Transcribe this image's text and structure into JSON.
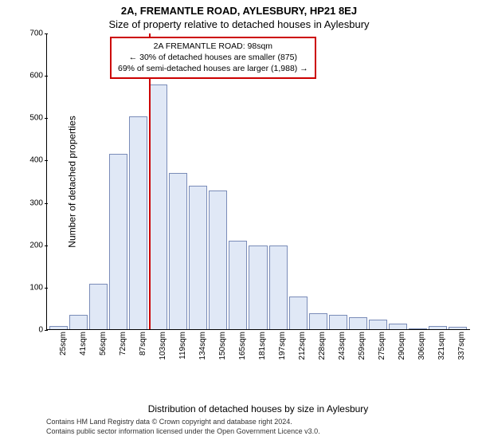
{
  "title": {
    "main": "2A, FREMANTLE ROAD, AYLESBURY, HP21 8EJ",
    "sub": "Size of property relative to detached houses in Aylesbury"
  },
  "chart": {
    "type": "histogram",
    "ylabel": "Number of detached properties",
    "xlabel": "Distribution of detached houses by size in Aylesbury",
    "ylim_max": 700,
    "ytick_step": 100,
    "yticks": [
      0,
      100,
      200,
      300,
      400,
      500,
      600,
      700
    ],
    "bar_fill": "#e0e8f6",
    "bar_border": "#7a8cb8",
    "background_color": "#ffffff",
    "marker_color": "#cc0000",
    "marker_position_bin_index": 5,
    "categories": [
      "25sqm",
      "41sqm",
      "56sqm",
      "72sqm",
      "87sqm",
      "103sqm",
      "119sqm",
      "134sqm",
      "150sqm",
      "165sqm",
      "181sqm",
      "197sqm",
      "212sqm",
      "228sqm",
      "243sqm",
      "259sqm",
      "275sqm",
      "290sqm",
      "306sqm",
      "321sqm",
      "337sqm"
    ],
    "values": [
      10,
      35,
      110,
      415,
      505,
      580,
      370,
      340,
      330,
      210,
      200,
      200,
      80,
      40,
      35,
      30,
      25,
      15,
      3,
      10,
      8
    ]
  },
  "annotation": {
    "line1": "2A FREMANTLE ROAD: 98sqm",
    "line2": "← 30% of detached houses are smaller (875)",
    "line3": "69% of semi-detached houses are larger (1,988) →"
  },
  "attribution": {
    "line1": "Contains HM Land Registry data © Crown copyright and database right 2024.",
    "line2": "Contains public sector information licensed under the Open Government Licence v3.0."
  },
  "fonts": {
    "title_fontsize": 13,
    "axis_label_fontsize": 12,
    "tick_fontsize": 10,
    "annotation_fontsize": 10.5,
    "attribution_fontsize": 9
  }
}
